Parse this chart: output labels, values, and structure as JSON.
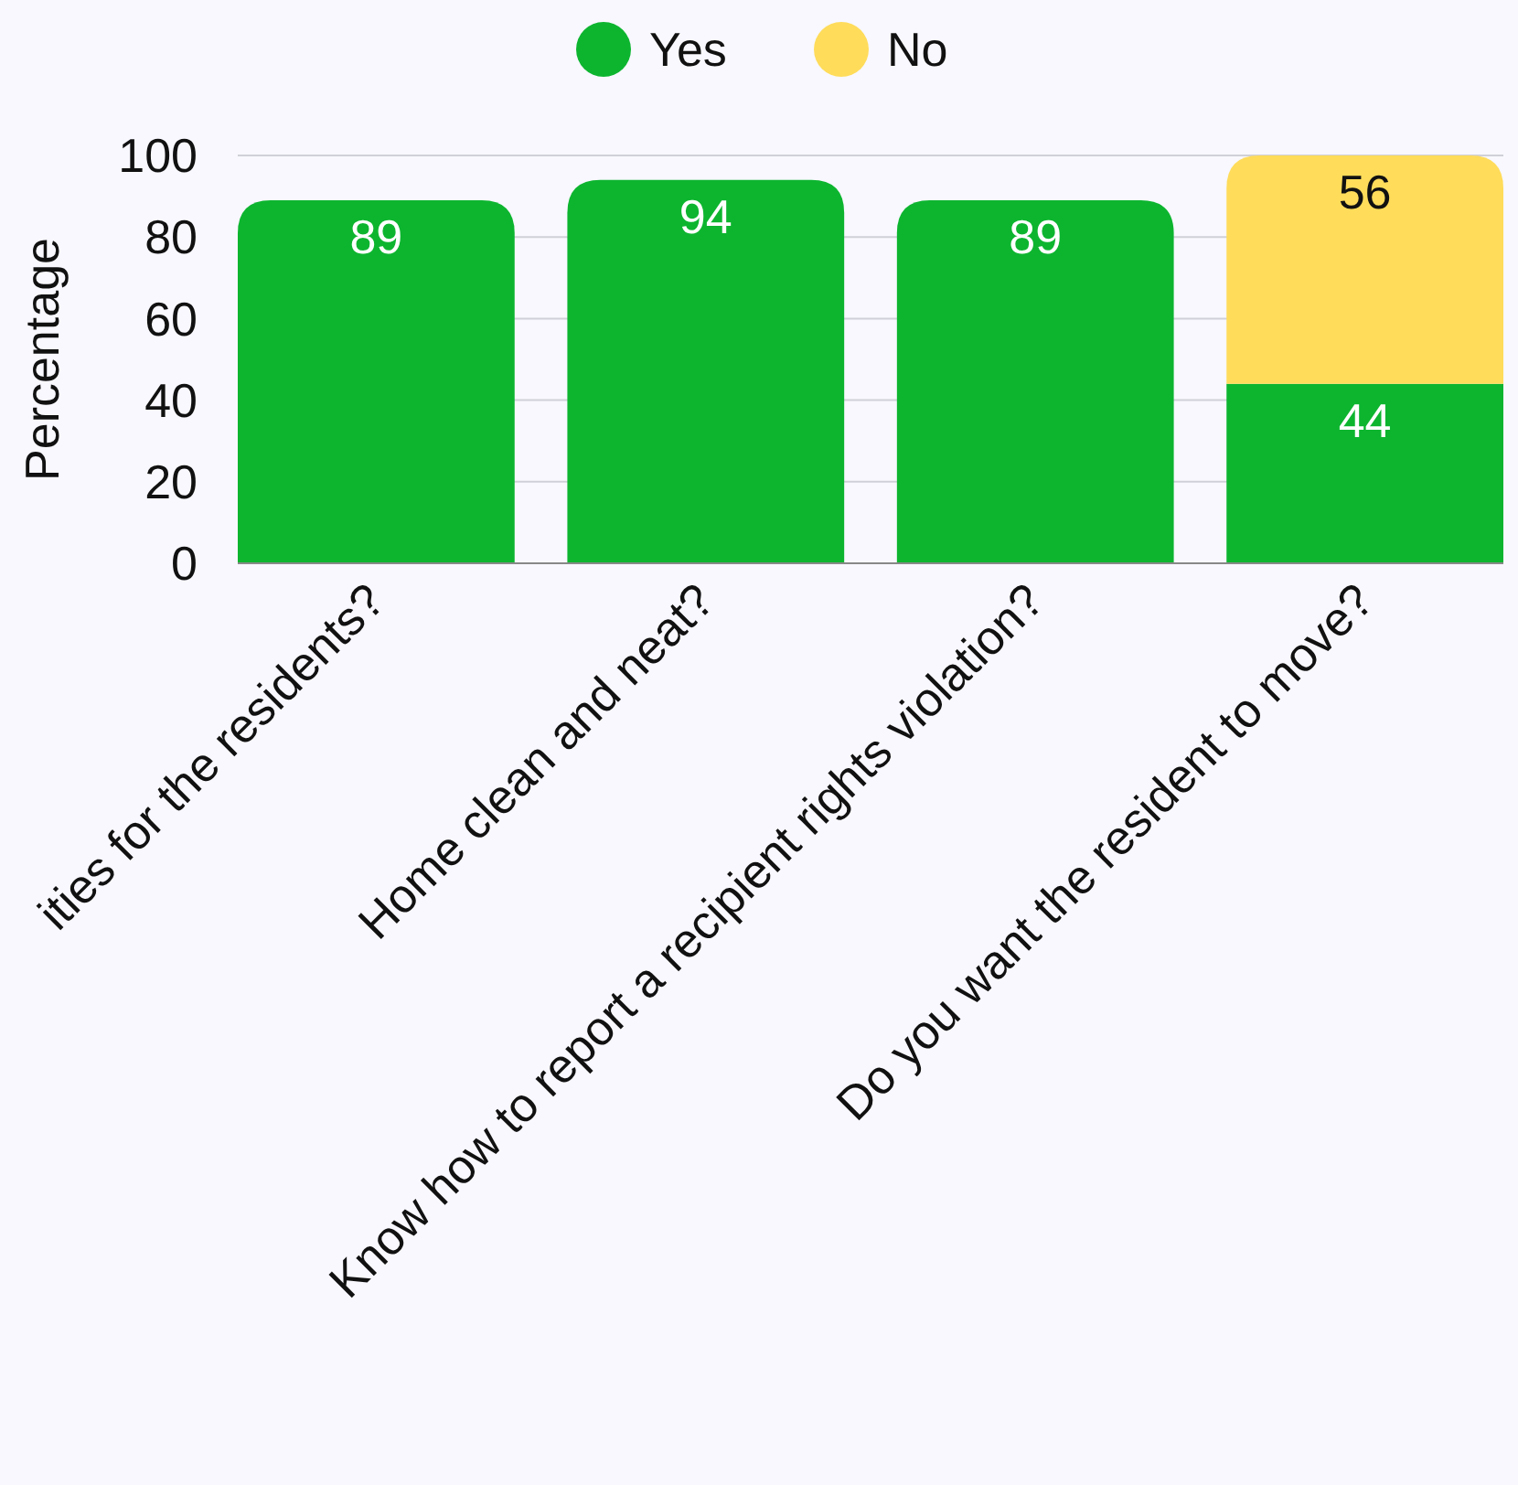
{
  "chart_data": {
    "type": "bar",
    "stacked": true,
    "ylabel": "Percentage",
    "categories": [
      "ities for the residents?",
      "Home clean and neat?",
      "Know how to report a recipient rights violation?",
      "Do you want the resident to move?"
    ],
    "series": [
      {
        "name": "Yes",
        "color": "#0db52f",
        "values": [
          89,
          94,
          89,
          44
        ]
      },
      {
        "name": "No",
        "color": "#ffdc5a",
        "values": [
          null,
          null,
          null,
          56
        ]
      }
    ],
    "ylim": [
      0,
      100
    ],
    "yticks": [
      0,
      20,
      40,
      60,
      80,
      100
    ],
    "grid": "y",
    "legend": "top",
    "data_labels": true
  }
}
